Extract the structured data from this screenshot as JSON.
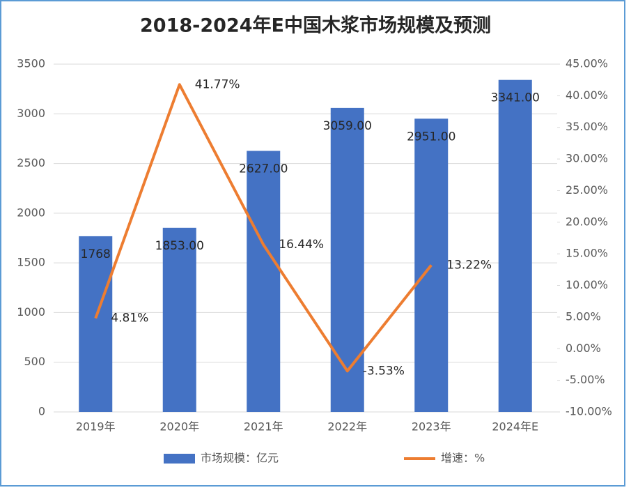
{
  "chart_data": {
    "type": "bar",
    "title": "2018-2024年E中国木浆市场规模及预测",
    "categories": [
      "2019年",
      "2020年",
      "2021年",
      "2022年",
      "2023年",
      "2024年E"
    ],
    "series": [
      {
        "name": "市场规模：亿元",
        "type": "bar",
        "color": "#4472c4",
        "values": [
          1768,
          1853,
          2627,
          3059,
          2951,
          3341
        ],
        "value_labels": [
          "1768",
          "1853.00",
          "2627.00",
          "3059.00",
          "2951.00",
          "3341.00"
        ]
      },
      {
        "name": "增速：%",
        "type": "line",
        "axis": "y2",
        "color": "#ed7d31",
        "values": [
          4.81,
          41.77,
          16.44,
          -3.53,
          13.22,
          null
        ],
        "value_labels": [
          "4.81%",
          "41.77%",
          "16.44%",
          "-3.53%",
          "13.22%",
          null
        ]
      }
    ],
    "ylim": [
      0,
      3500
    ],
    "yticks": [
      0,
      500,
      1000,
      1500,
      2000,
      2500,
      3000,
      3500
    ],
    "y2lim": [
      -10,
      45
    ],
    "y2ticks": [
      {
        "value": -10,
        "label": "-10.00%"
      },
      {
        "value": -5,
        "label": "-5.00%"
      },
      {
        "value": 0,
        "label": "0.00%"
      },
      {
        "value": 5,
        "label": "5.00%"
      },
      {
        "value": 10,
        "label": "10.00%"
      },
      {
        "value": 15,
        "label": "15.00%"
      },
      {
        "value": 20,
        "label": "20.00%"
      },
      {
        "value": 25,
        "label": "25.00%"
      },
      {
        "value": 30,
        "label": "30.00%"
      },
      {
        "value": 35,
        "label": "35.00%"
      },
      {
        "value": 40,
        "label": "40.00%"
      },
      {
        "value": 45,
        "label": "45.00%"
      }
    ],
    "legend": "bottom"
  }
}
